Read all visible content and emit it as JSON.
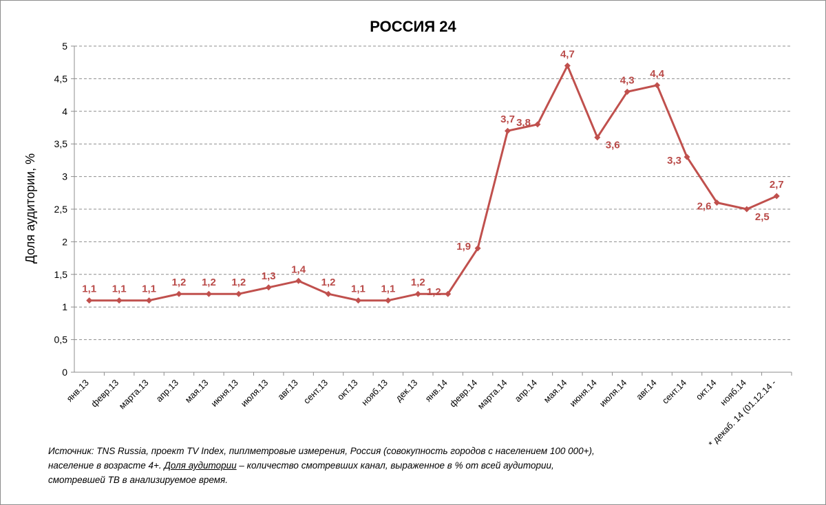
{
  "chart_data": {
    "type": "line",
    "title": "РОССИЯ 24",
    "xlabel": "",
    "ylabel": "Доля аудитории, %",
    "ylim": [
      0,
      5
    ],
    "yticks": [
      "0",
      "0,5",
      "1",
      "1,5",
      "2",
      "2,5",
      "3",
      "3,5",
      "4",
      "4,5",
      "5"
    ],
    "grid": "horizontal-dashed",
    "legend": "none",
    "color": "#c0504d",
    "label_color": "#b94a48",
    "categories": [
      "янв.13",
      "февр.13",
      "марта.13",
      "апр.13",
      "мая.13",
      "июня.13",
      "июля.13",
      "авг.13",
      "сент.13",
      "окт.13",
      "нояб.13",
      "дек.13",
      "янв.14",
      "февр.14",
      "марта.14",
      "апр.14",
      "мая.14",
      "июня.14",
      "июля.14",
      "авг.14",
      "сент.14",
      "окт.14",
      "нояб.14",
      "* декаб. 14 (01.12.14 -"
    ],
    "values": [
      1.1,
      1.1,
      1.1,
      1.2,
      1.2,
      1.2,
      1.3,
      1.4,
      1.2,
      1.1,
      1.1,
      1.2,
      1.2,
      1.9,
      3.7,
      3.8,
      4.7,
      3.6,
      4.3,
      4.4,
      3.3,
      2.6,
      2.5,
      2.7
    ],
    "data_labels": [
      "1,1",
      "1,1",
      "1,1",
      "1,2",
      "1,2",
      "1,2",
      "1,3",
      "1,4",
      "1,2",
      "1,1",
      "1,1",
      "1,2",
      "1,2",
      "1,9",
      "3,7",
      "3,8",
      "4,7",
      "3,6",
      "4,3",
      "4,4",
      "3,3",
      "2,6",
      "2,5",
      "2,7"
    ]
  },
  "footnote": {
    "part1": "Источник: TNS Russia, проект TV Index, пиплметровые измерения, Россия (совокупность городов с населением 100 000+), население в возрасте 4+.  ",
    "term": "Доля аудитории",
    "part2": " – количество смотревших канал, выраженное в % от всей аудитории, смотревшей ТВ в анализируемое время."
  }
}
